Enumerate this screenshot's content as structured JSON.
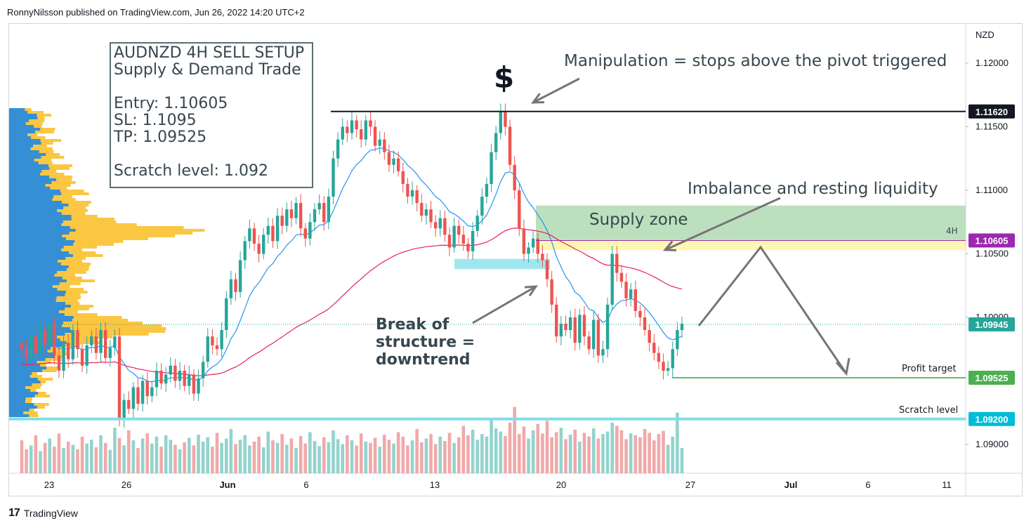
{
  "header": "RonnyNilsson published on TradingView.com, Jun 26, 2022 14:20 UTC+2",
  "footer": {
    "logo": "17",
    "brand": "TradingView"
  },
  "setup_box": {
    "line1": "AUDNZD 4H SELL SETUP",
    "line2": "Supply & Demand Trade",
    "entry": "Entry: 1.10605",
    "sl": "SL: 1.1095",
    "tp": "TP: 1.09525",
    "scratch": "Scratch level: 1.092"
  },
  "annotations": {
    "dollar": "$",
    "manipulation": "Manipulation = stops above the pivot triggered",
    "imbalance": "Imbalance and resting liquidity",
    "supply_zone": "Supply zone",
    "zone_tf": "4H",
    "bos_1": "Break of",
    "bos_2": "structure =",
    "bos_3": "downtrend",
    "profit_target": "Profit target",
    "scratch_level": "Scratch level"
  },
  "price_tags": [
    {
      "label": "1.11620",
      "color": "#131722"
    },
    {
      "label": "1.10605",
      "color": "#9c27b0"
    },
    {
      "label": "1.09945",
      "color": "#26a69a"
    },
    {
      "label": "1.09525",
      "color": "#4caf50"
    },
    {
      "label": "1.09200",
      "color": "#00bcd4"
    }
  ],
  "colors": {
    "up": "#26a69a",
    "down": "#ef5350",
    "ema_fast": "#2196f3",
    "ema_slow": "#e91e63",
    "supply": "#a5d6a7",
    "imbalance": "#fff59d",
    "vp_blue": "#1e88e5",
    "vp_orange": "#fbc02d"
  },
  "chart_data": {
    "type": "candlestick",
    "symbol": "AUDNZD",
    "timeframe": "4H",
    "currency": "NZD",
    "y_ticks": [
      "1.12000",
      "1.11500",
      "1.11000",
      "1.10500",
      "1.10000",
      "1.09000"
    ],
    "ylim": [
      1.0865,
      1.121
    ],
    "x_ticks": [
      "23",
      "26",
      "Jun",
      "6",
      "13",
      "20",
      "27",
      "Jul",
      "6",
      "11"
    ],
    "levels": {
      "pivot_high": 1.1162,
      "entry": 1.10605,
      "last": 1.09945,
      "take_profit": 1.09525,
      "scratch": 1.092
    },
    "zones": [
      {
        "name": "Supply zone",
        "from": 1.106,
        "to": 1.1088
      },
      {
        "name": "Imbalance",
        "from": 1.1053,
        "to": 1.1061
      }
    ],
    "closes": [
      1.0975,
      1.0968,
      1.0985,
      1.0972,
      1.099,
      1.0978,
      1.0995,
      1.097,
      1.0958,
      1.098,
      1.0967,
      1.099,
      1.0975,
      1.0962,
      1.0978,
      1.0985,
      1.0972,
      1.099,
      1.0968,
      1.0976,
      1.0985,
      1.092,
      1.0935,
      1.0928,
      1.0945,
      1.0932,
      1.095,
      1.0938,
      1.0945,
      1.0958,
      1.0948,
      1.0955,
      1.0962,
      1.095,
      1.0958,
      1.0946,
      1.0955,
      1.094,
      1.0952,
      1.0965,
      1.0985,
      1.0978,
      1.0975,
      1.099,
      1.1015,
      1.103,
      1.102,
      1.1045,
      1.106,
      1.107,
      1.1058,
      1.105,
      1.1065,
      1.1072,
      1.106,
      1.108,
      1.1072,
      1.1085,
      1.1078,
      1.109,
      1.107,
      1.1062,
      1.1075,
      1.1085,
      1.109,
      1.1075,
      1.1095,
      1.1125,
      1.114,
      1.115,
      1.1145,
      1.1155,
      1.1148,
      1.114,
      1.1155,
      1.115,
      1.1135,
      1.114,
      1.113,
      1.112,
      1.1125,
      1.1115,
      1.1105,
      1.1095,
      1.11,
      1.109,
      1.108,
      1.1085,
      1.1075,
      1.107,
      1.1078,
      1.1065,
      1.1055,
      1.1072,
      1.1065,
      1.1058,
      1.1052,
      1.1068,
      1.108,
      1.1095,
      1.1105,
      1.113,
      1.1145,
      1.1162,
      1.115,
      1.112,
      1.11,
      1.107,
      1.105,
      1.1055,
      1.1062,
      1.105,
      1.1045,
      1.103,
      1.101,
      1.0985,
      1.0995,
      1.099,
      1.1,
      1.098,
      1.1002,
      1.0985,
      1.0975,
      1.0998,
      1.097,
      1.0975,
      1.101,
      1.105,
      1.1035,
      1.1028,
      1.1015,
      1.1022,
      1.1005,
      1.1,
      1.099,
      1.098,
      1.0972,
      1.0965,
      1.0958,
      1.096,
      1.0975,
      1.099,
      1.0995
    ],
    "volumes": [
      52,
      38,
      44,
      60,
      35,
      48,
      55,
      42,
      63,
      40,
      50,
      45,
      38,
      58,
      47,
      53,
      41,
      60,
      48,
      37,
      72,
      56,
      44,
      68,
      52,
      40,
      55,
      63,
      47,
      58,
      42,
      60,
      53,
      45,
      38,
      49,
      56,
      44,
      61,
      50,
      57,
      42,
      64,
      48,
      55,
      70,
      46,
      53,
      60,
      44,
      50,
      58,
      41,
      66,
      52,
      48,
      62,
      45,
      55,
      40,
      59,
      47,
      65,
      51,
      43,
      57,
      49,
      68,
      54,
      46,
      60,
      52,
      44,
      63,
      50,
      48,
      56,
      42,
      61,
      53,
      47,
      65,
      58,
      44,
      52,
      70,
      49,
      55,
      62,
      46,
      58,
      51,
      64,
      48,
      57,
      75,
      60,
      69,
      53,
      62,
      58,
      84,
      71,
      66,
      59,
      80,
      105,
      62,
      74,
      55,
      68,
      78,
      63,
      83,
      57,
      65,
      72,
      54,
      61,
      69,
      50,
      64,
      58,
      71,
      55,
      62,
      66,
      80,
      75,
      68,
      54,
      63,
      60,
      57,
      70,
      64,
      52,
      62,
      67,
      45,
      58,
      96,
      40
    ]
  }
}
